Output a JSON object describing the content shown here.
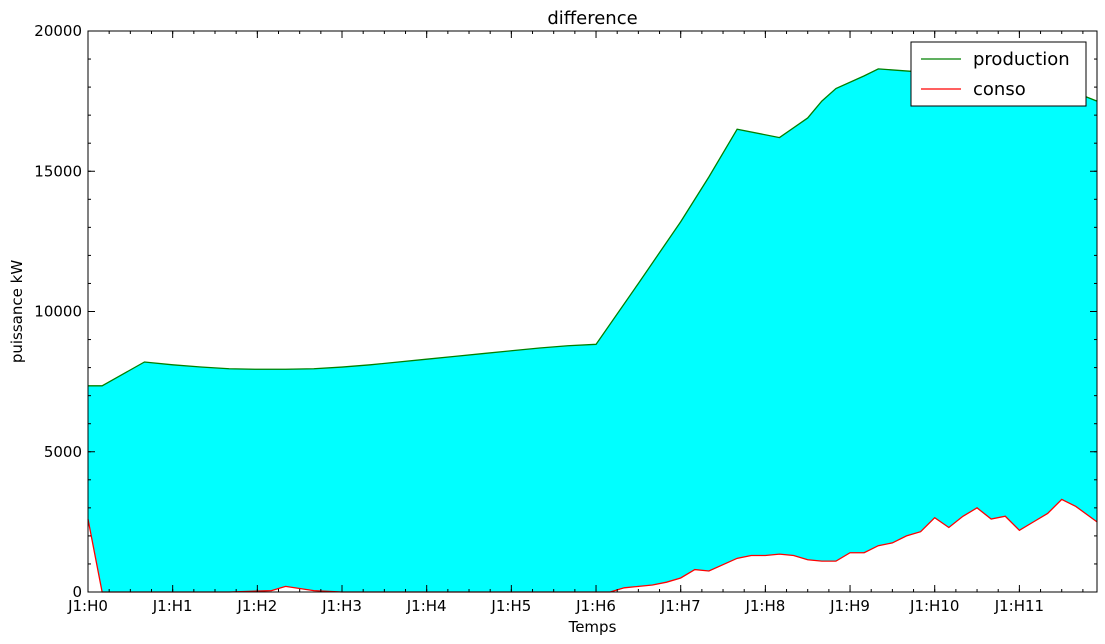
{
  "chart_data": {
    "type": "area",
    "title": "difference",
    "xlabel": "Temps",
    "ylabel": "puissance kW",
    "xlim": [
      0,
      143
    ],
    "ylim": [
      0,
      20000
    ],
    "xticks": [
      {
        "value": 0,
        "label": "J1:H0"
      },
      {
        "value": 12,
        "label": "J1:H1"
      },
      {
        "value": 24,
        "label": "J1:H2"
      },
      {
        "value": 36,
        "label": "J1:H3"
      },
      {
        "value": 48,
        "label": "J1:H4"
      },
      {
        "value": 60,
        "label": "J1:H5"
      },
      {
        "value": 72,
        "label": "J1:H6"
      },
      {
        "value": 84,
        "label": "J1:H7"
      },
      {
        "value": 96,
        "label": "J1:H8"
      },
      {
        "value": 108,
        "label": "J1:H9"
      },
      {
        "value": 120,
        "label": "J1:H10"
      },
      {
        "value": 132,
        "label": "J1:H11"
      }
    ],
    "yticks": [
      0,
      5000,
      10000,
      15000,
      20000
    ],
    "fill_color": "#00ffff",
    "legend_position": "top-right",
    "series": [
      {
        "name": "production",
        "color": "#008000",
        "points": [
          [
            0,
            7350
          ],
          [
            2,
            7350
          ],
          [
            8,
            8200
          ],
          [
            12,
            8100
          ],
          [
            16,
            8020
          ],
          [
            20,
            7960
          ],
          [
            24,
            7940
          ],
          [
            28,
            7940
          ],
          [
            32,
            7960
          ],
          [
            36,
            8020
          ],
          [
            40,
            8100
          ],
          [
            44,
            8200
          ],
          [
            48,
            8300
          ],
          [
            52,
            8400
          ],
          [
            56,
            8500
          ],
          [
            60,
            8600
          ],
          [
            64,
            8700
          ],
          [
            68,
            8780
          ],
          [
            72,
            8830
          ],
          [
            78,
            11000
          ],
          [
            84,
            13200
          ],
          [
            88,
            14800
          ],
          [
            92,
            16500
          ],
          [
            98,
            16200
          ],
          [
            102,
            16900
          ],
          [
            104,
            17500
          ],
          [
            106,
            17950
          ],
          [
            110,
            18400
          ],
          [
            112,
            18650
          ],
          [
            120,
            18500
          ],
          [
            125,
            18400
          ],
          [
            130,
            18200
          ],
          [
            136,
            18000
          ],
          [
            140,
            17800
          ],
          [
            143,
            17500
          ]
        ]
      },
      {
        "name": "conso",
        "color": "#ff0000",
        "points": [
          [
            0,
            2600
          ],
          [
            2,
            0
          ],
          [
            10,
            0
          ],
          [
            20,
            0
          ],
          [
            26,
            50
          ],
          [
            28,
            200
          ],
          [
            32,
            50
          ],
          [
            36,
            0
          ],
          [
            50,
            0
          ],
          [
            62,
            0
          ],
          [
            74,
            0
          ],
          [
            76,
            150
          ],
          [
            80,
            250
          ],
          [
            82,
            350
          ],
          [
            84,
            500
          ],
          [
            86,
            800
          ],
          [
            88,
            750
          ],
          [
            92,
            1200
          ],
          [
            94,
            1300
          ],
          [
            96,
            1300
          ],
          [
            98,
            1350
          ],
          [
            100,
            1300
          ],
          [
            102,
            1150
          ],
          [
            104,
            1100
          ],
          [
            106,
            1100
          ],
          [
            108,
            1400
          ],
          [
            110,
            1400
          ],
          [
            112,
            1650
          ],
          [
            114,
            1750
          ],
          [
            116,
            2000
          ],
          [
            118,
            2150
          ],
          [
            120,
            2650
          ],
          [
            122,
            2300
          ],
          [
            124,
            2700
          ],
          [
            126,
            3000
          ],
          [
            128,
            2600
          ],
          [
            130,
            2700
          ],
          [
            132,
            2200
          ],
          [
            134,
            2500
          ],
          [
            136,
            2800
          ],
          [
            138,
            3300
          ],
          [
            140,
            3050
          ],
          [
            143,
            2500
          ]
        ]
      }
    ]
  }
}
